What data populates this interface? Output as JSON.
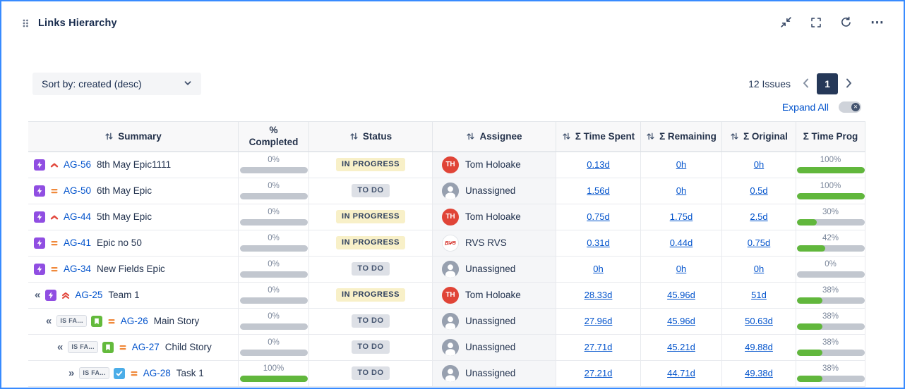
{
  "panel": {
    "title": "Links Hierarchy"
  },
  "glyphs": {
    "more": "⋯",
    "toggle_off": "✕"
  },
  "toolbar": {
    "sort_label": "Sort by: created (desc)",
    "issues_count": "12 Issues",
    "page": "1",
    "expand_all_label": "Expand All"
  },
  "colors": {
    "accent_border": "#388BFF",
    "link": "#0052CC",
    "progress_green": "#61B73C",
    "epic": "#904EE2",
    "story": "#63BA3C",
    "task": "#4BADE8",
    "status_inprogress_bg": "#F8F0C8",
    "status_todo_bg": "#DDE0E6",
    "page_badge_bg": "#253858",
    "avatar_red": "#E04437"
  },
  "table": {
    "columns": [
      {
        "label": "Summary",
        "sortable": true,
        "wrap": false
      },
      {
        "label": "% Completed",
        "sortable": false,
        "wrap": true
      },
      {
        "label": "Status",
        "sortable": true,
        "wrap": false
      },
      {
        "label": "Assignee",
        "sortable": true,
        "wrap": false
      },
      {
        "label": "Σ Time Spent",
        "sortable": true,
        "wrap": false
      },
      {
        "label": "Σ Remaining",
        "sortable": true,
        "wrap": false
      },
      {
        "label": "Σ Original",
        "sortable": true,
        "wrap": false
      },
      {
        "label": "Σ Time Prog",
        "sortable": false,
        "wrap": false
      }
    ],
    "rows": [
      {
        "indent": 0,
        "collapse": "",
        "link_badge": "",
        "type": "epic",
        "priority": "high",
        "key": "AG-56",
        "summary": "8th May Epic1111",
        "completed": "0%",
        "completed_pct": 0,
        "status": "IN PROGRESS",
        "status_kind": "inprogress",
        "assignee": "Tom Holoake",
        "avatar": "TH",
        "time_spent": "0.13d",
        "remaining": "0h",
        "original": "0h",
        "time_prog": "100%",
        "time_prog_pct": 100
      },
      {
        "indent": 0,
        "collapse": "",
        "link_badge": "",
        "type": "epic",
        "priority": "medium",
        "key": "AG-50",
        "summary": "6th May Epic",
        "completed": "0%",
        "completed_pct": 0,
        "status": "TO DO",
        "status_kind": "todo",
        "assignee": "Unassigned",
        "avatar": "unassigned",
        "time_spent": "1.56d",
        "remaining": "0h",
        "original": "0.5d",
        "time_prog": "100%",
        "time_prog_pct": 100
      },
      {
        "indent": 0,
        "collapse": "",
        "link_badge": "",
        "type": "epic",
        "priority": "high",
        "key": "AG-44",
        "summary": "5th May Epic",
        "completed": "0%",
        "completed_pct": 0,
        "status": "IN PROGRESS",
        "status_kind": "inprogress",
        "assignee": "Tom Holoake",
        "avatar": "TH",
        "time_spent": "0.75d",
        "remaining": "1.75d",
        "original": "2.5d",
        "time_prog": "30%",
        "time_prog_pct": 30
      },
      {
        "indent": 0,
        "collapse": "",
        "link_badge": "",
        "type": "epic",
        "priority": "medium",
        "key": "AG-41",
        "summary": "Epic no 50",
        "completed": "0%",
        "completed_pct": 0,
        "status": "IN PROGRESS",
        "status_kind": "inprogress",
        "assignee": "RVS RVS",
        "avatar": "RVS",
        "time_spent": "0.31d",
        "remaining": "0.44d",
        "original": "0.75d",
        "time_prog": "42%",
        "time_prog_pct": 42
      },
      {
        "indent": 0,
        "collapse": "",
        "link_badge": "",
        "type": "epic",
        "priority": "medium",
        "key": "AG-34",
        "summary": "New Fields Epic",
        "completed": "0%",
        "completed_pct": 0,
        "status": "TO DO",
        "status_kind": "todo",
        "assignee": "Unassigned",
        "avatar": "unassigned",
        "time_spent": "0h",
        "remaining": "0h",
        "original": "0h",
        "time_prog": "0%",
        "time_prog_pct": 0
      },
      {
        "indent": 0,
        "collapse": "«",
        "link_badge": "",
        "type": "epic",
        "priority": "highest",
        "key": "AG-25",
        "summary": "Team 1",
        "completed": "0%",
        "completed_pct": 0,
        "status": "IN PROGRESS",
        "status_kind": "inprogress",
        "assignee": "Tom Holoake",
        "avatar": "TH",
        "time_spent": "28.33d",
        "remaining": "45.96d",
        "original": "51d",
        "time_prog": "38%",
        "time_prog_pct": 38
      },
      {
        "indent": 1,
        "collapse": "«",
        "link_badge": "IS FA...",
        "type": "story",
        "priority": "medium",
        "key": "AG-26",
        "summary": "Main Story",
        "completed": "0%",
        "completed_pct": 0,
        "status": "TO DO",
        "status_kind": "todo",
        "assignee": "Unassigned",
        "avatar": "unassigned",
        "time_spent": "27.96d",
        "remaining": "45.96d",
        "original": "50.63d",
        "time_prog": "38%",
        "time_prog_pct": 38
      },
      {
        "indent": 2,
        "collapse": "«",
        "link_badge": "IS FA...",
        "type": "story",
        "priority": "medium",
        "key": "AG-27",
        "summary": "Child Story",
        "completed": "0%",
        "completed_pct": 0,
        "status": "TO DO",
        "status_kind": "todo",
        "assignee": "Unassigned",
        "avatar": "unassigned",
        "time_spent": "27.71d",
        "remaining": "45.21d",
        "original": "49.88d",
        "time_prog": "38%",
        "time_prog_pct": 38
      },
      {
        "indent": 3,
        "collapse": "»",
        "link_badge": "IS FA...",
        "type": "task",
        "priority": "medium",
        "key": "AG-28",
        "summary": "Task 1",
        "completed": "100%",
        "completed_pct": 100,
        "status": "TO DO",
        "status_kind": "todo",
        "assignee": "Unassigned",
        "avatar": "unassigned",
        "time_spent": "27.21d",
        "remaining": "44.71d",
        "original": "49.38d",
        "time_prog": "38%",
        "time_prog_pct": 38
      }
    ]
  }
}
